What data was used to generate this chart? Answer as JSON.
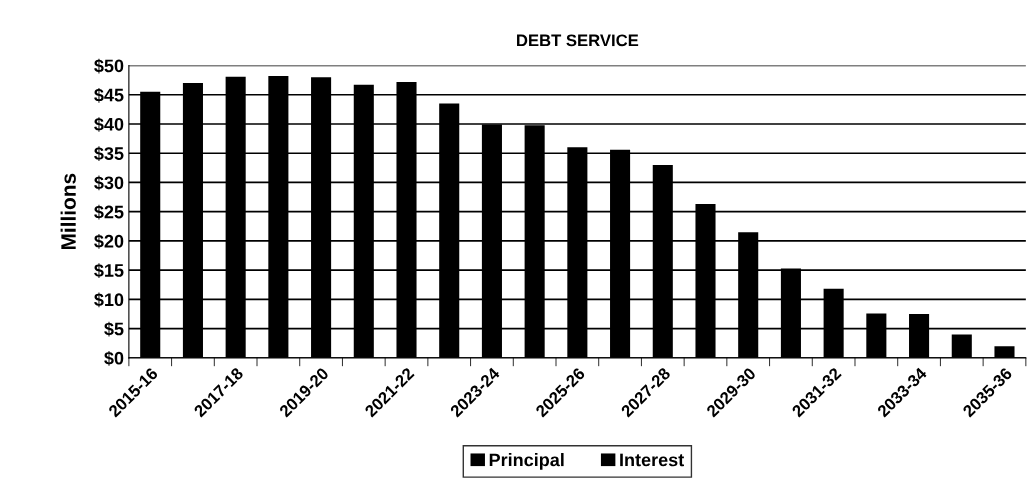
{
  "chart_data": {
    "type": "bar",
    "title": "DEBT SERVICE",
    "ylabel": "Millions",
    "categories": [
      "2015-16",
      null,
      "2017-18",
      null,
      "2019-20",
      null,
      "2021-22",
      null,
      "2023-24",
      null,
      "2025-26",
      null,
      "2027-28",
      null,
      "2029-30",
      null,
      "2031-32",
      null,
      "2033-34",
      null,
      "2035-36"
    ],
    "series": [
      {
        "name": "Principal",
        "color": "#000000",
        "values": [
          45.5,
          47.0,
          48.1,
          48.2,
          48.0,
          46.7,
          47.2,
          43.5,
          39.9,
          39.8,
          36.0,
          35.6,
          33.0,
          26.3,
          21.5,
          15.3,
          11.8,
          7.6,
          7.5,
          4.0,
          2.0
        ]
      },
      {
        "name": "Interest",
        "color": "#000000",
        "values": [
          null,
          null,
          null,
          null,
          null,
          null,
          null,
          null,
          null,
          null,
          null,
          null,
          null,
          null,
          null,
          null,
          null,
          null,
          null,
          null,
          null
        ]
      }
    ],
    "ylim": [
      0,
      50
    ],
    "yticks": [
      {
        "value": 0,
        "label": "$0"
      },
      {
        "value": 5,
        "label": "$5"
      },
      {
        "value": 10,
        "label": "$10"
      },
      {
        "value": 15,
        "label": "$15"
      },
      {
        "value": 20,
        "label": "$20"
      },
      {
        "value": 25,
        "label": "$25"
      },
      {
        "value": 30,
        "label": "$30"
      },
      {
        "value": 35,
        "label": "$35"
      },
      {
        "value": 40,
        "label": "$40"
      },
      {
        "value": 45,
        "label": "$45"
      },
      {
        "value": 50,
        "label": "$50"
      }
    ],
    "grid": "y",
    "legend": "bottom"
  }
}
